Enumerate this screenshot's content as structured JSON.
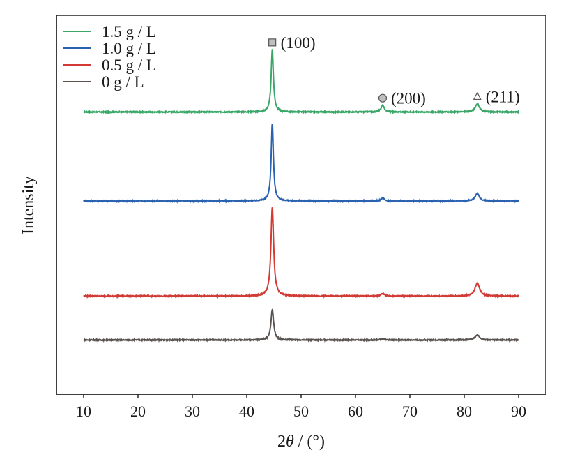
{
  "chart_data": {
    "type": "line",
    "title": "",
    "xlabel_parts": [
      "2",
      "θ",
      " / (°)"
    ],
    "ylabel": "Intensity",
    "xlim": [
      5,
      95
    ],
    "xticks": [
      "10",
      "20",
      "30",
      "40",
      "50",
      "60",
      "70",
      "80",
      "90"
    ],
    "grid": false,
    "legend_position": "top-left",
    "plot_style": "stacked (vertically offset) diffraction patterns",
    "series": [
      {
        "name": "1.5 g / L",
        "color": "#3aa769",
        "baseline": 0.745,
        "peaks": [
          {
            "x": 44.7,
            "height": 0.165,
            "width": 0.25
          },
          {
            "x": 65.0,
            "height": 0.018,
            "width": 0.35
          },
          {
            "x": 82.4,
            "height": 0.022,
            "width": 0.45
          }
        ]
      },
      {
        "name": "1.0 g / L",
        "color": "#2a62b0",
        "baseline": 0.51,
        "peaks": [
          {
            "x": 44.7,
            "height": 0.205,
            "width": 0.25
          },
          {
            "x": 65.0,
            "height": 0.008,
            "width": 0.35
          },
          {
            "x": 82.4,
            "height": 0.02,
            "width": 0.45
          }
        ]
      },
      {
        "name": "0.5 g / L",
        "color": "#d23a35",
        "baseline": 0.259,
        "peaks": [
          {
            "x": 44.7,
            "height": 0.235,
            "width": 0.3
          },
          {
            "x": 65.0,
            "height": 0.006,
            "width": 0.4
          },
          {
            "x": 82.4,
            "height": 0.035,
            "width": 0.5
          }
        ]
      },
      {
        "name": "0 g / L",
        "color": "#5a5350",
        "baseline": 0.143,
        "peaks": [
          {
            "x": 44.7,
            "height": 0.08,
            "width": 0.3
          },
          {
            "x": 65.0,
            "height": 0.003,
            "width": 0.4
          },
          {
            "x": 82.4,
            "height": 0.013,
            "width": 0.5
          }
        ]
      }
    ],
    "annotations": [
      {
        "label": "(100)",
        "x": 44.7,
        "marker": "square",
        "series": "1.5 g / L"
      },
      {
        "label": "(200)",
        "x": 65.0,
        "marker": "circle",
        "series": "1.5 g / L"
      },
      {
        "label": "(211)",
        "x": 82.4,
        "marker": "triangle",
        "series": "1.5 g / L"
      }
    ]
  }
}
